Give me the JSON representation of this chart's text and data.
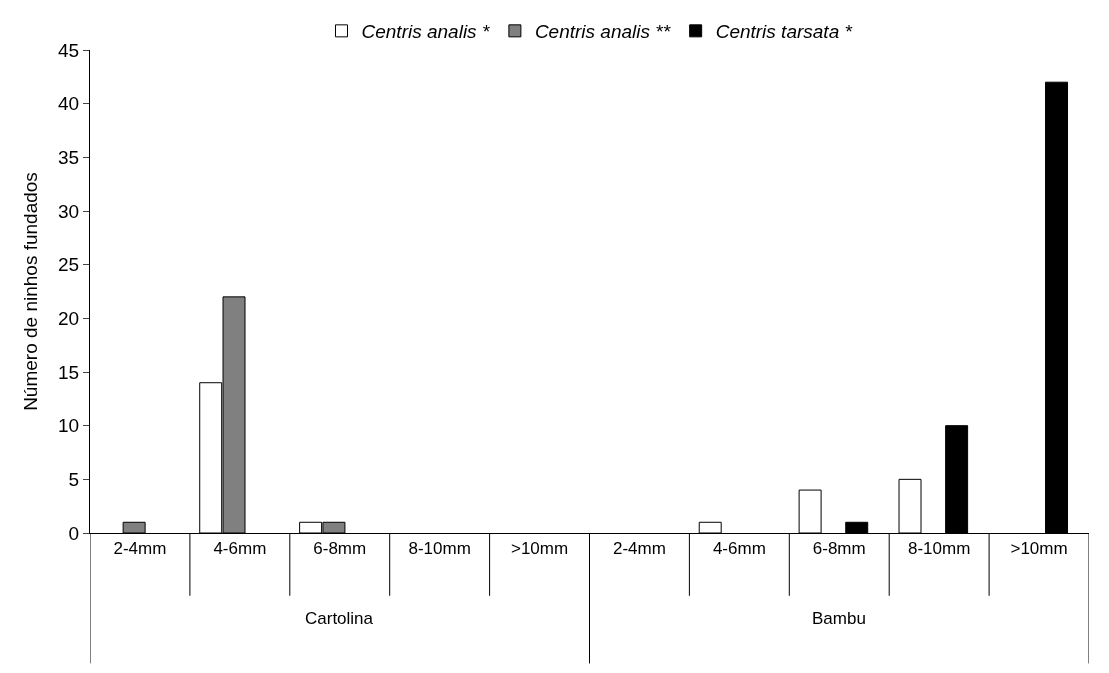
{
  "chart_data": {
    "type": "bar",
    "ylabel": "Número de ninhos fundados",
    "categories": [
      "2-4mm",
      "4-6mm",
      "6-8mm",
      "8-10mm",
      ">10mm",
      "2-4mm",
      "4-6mm",
      "6-8mm",
      "8-10mm",
      ">10mm"
    ],
    "series": [
      {
        "name": "Centris analis *",
        "color": "#ffffff",
        "values": [
          0,
          14,
          1,
          0,
          0,
          0,
          1,
          4,
          5,
          0
        ]
      },
      {
        "name": "Centris analis **",
        "color": "#808080",
        "values": [
          1,
          22,
          1,
          0,
          0,
          0,
          0,
          0,
          0,
          0
        ]
      },
      {
        "name": "Centris tarsata *",
        "color": "#000000",
        "values": [
          0,
          0,
          0,
          0,
          0,
          0,
          0,
          1,
          10,
          42
        ]
      }
    ],
    "annotations": [
      "Cartolina",
      "Bambu"
    ],
    "ylim": [
      0,
      45
    ],
    "yticks": [
      0,
      5,
      10,
      15,
      20,
      25,
      30,
      35,
      40,
      45
    ],
    "legend": "top"
  }
}
